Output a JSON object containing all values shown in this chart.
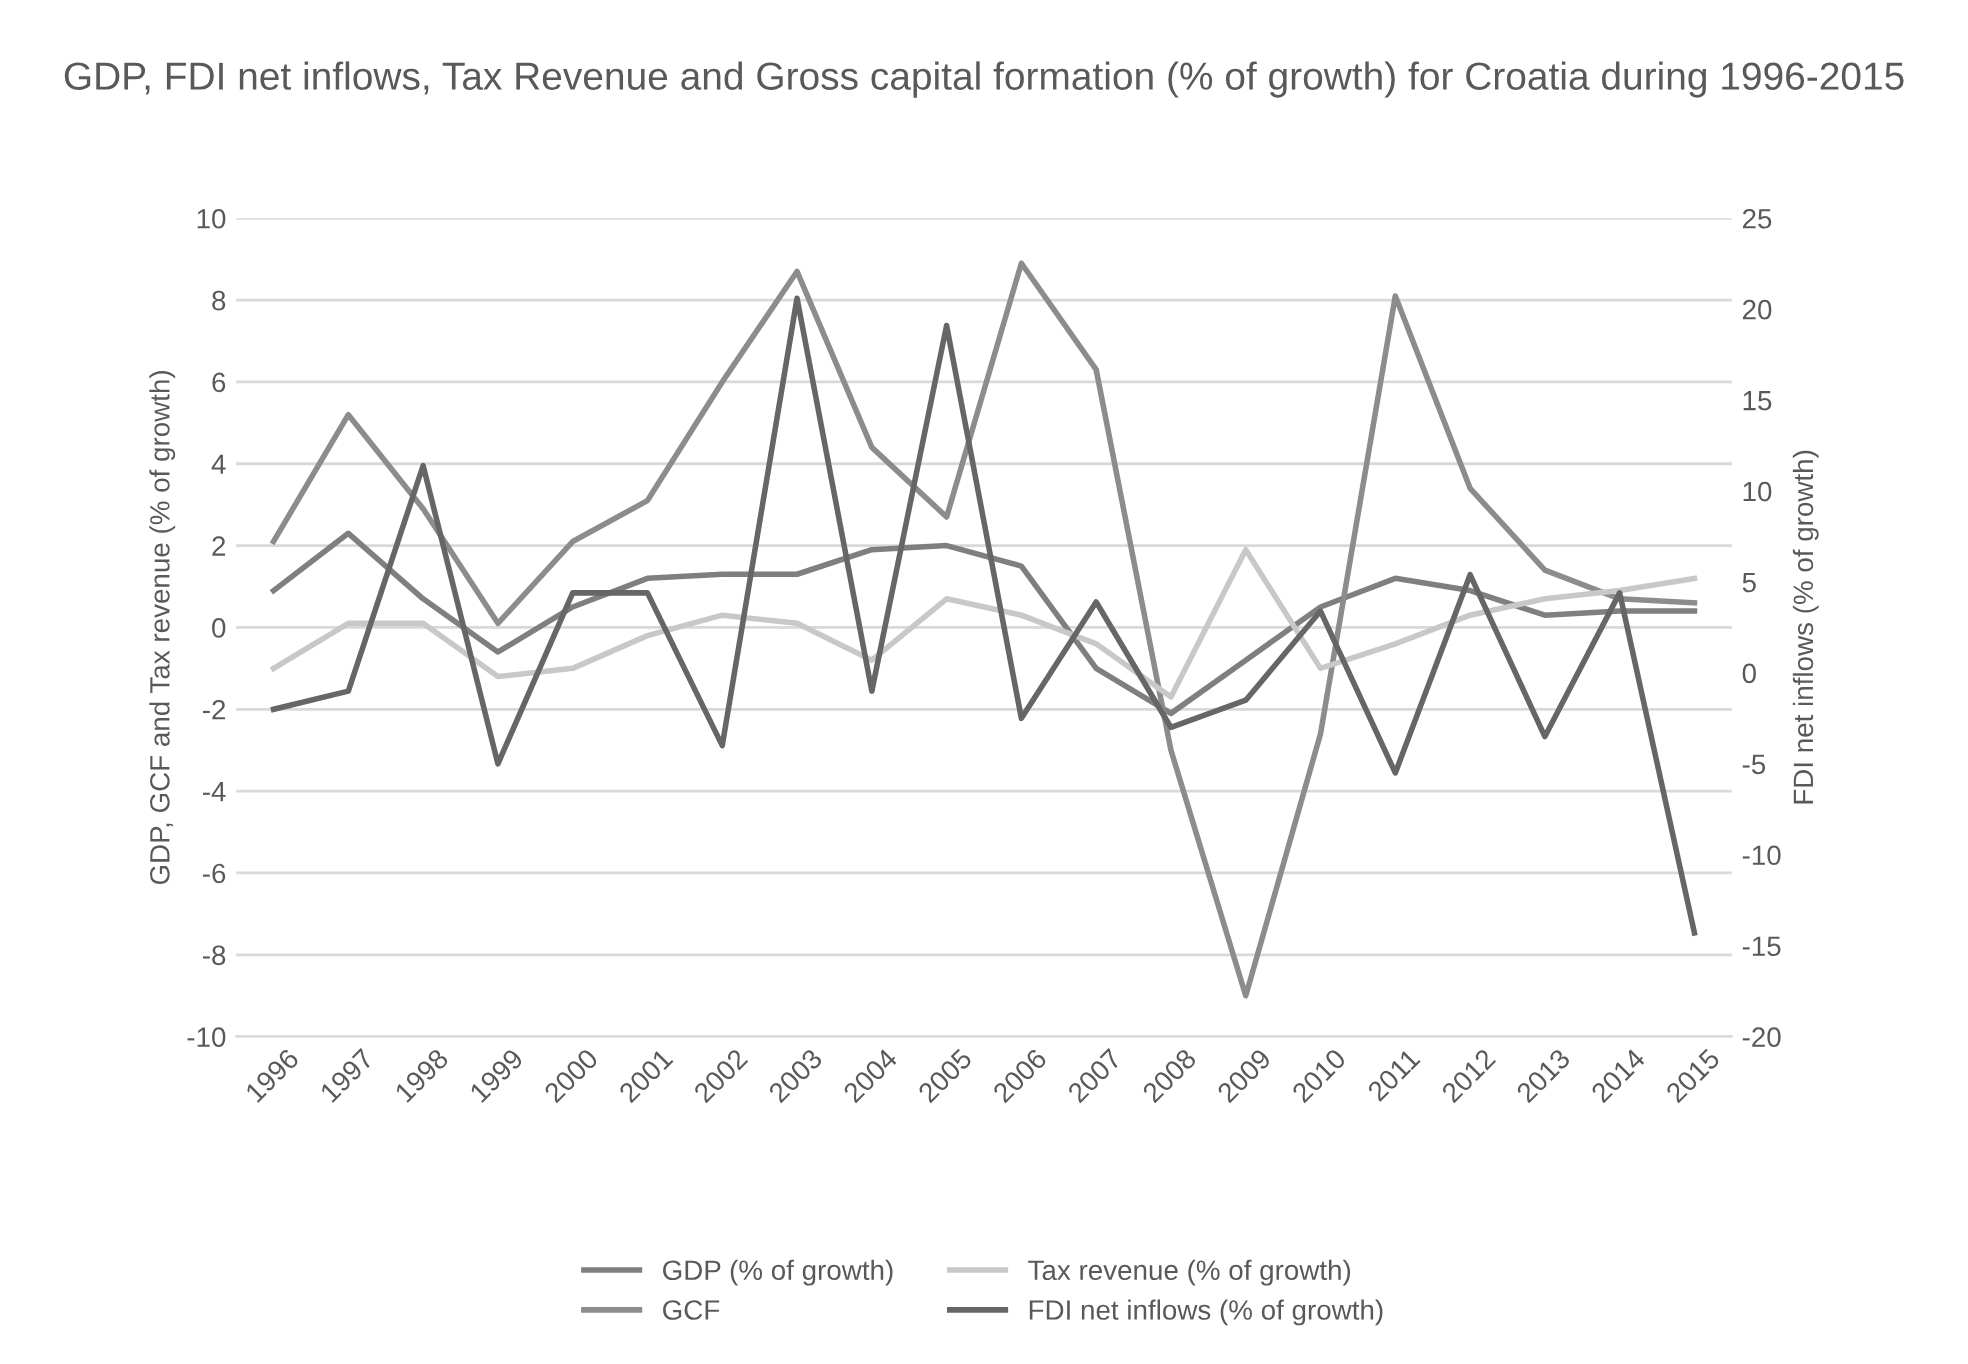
{
  "chart_data": {
    "type": "line",
    "title": "GDP, FDI net inflows, Tax Revenue and Gross capital formation (% of growth) for Croatia during 1996-2015",
    "ylabel": "GDP, GCF and Tax revenue (% of growth)",
    "y2label": "FDI net inflows (% of growth)",
    "categories": [
      "1996",
      "1997",
      "1998",
      "1999",
      "2000",
      "2001",
      "2002",
      "2003",
      "2004",
      "2005",
      "2006",
      "2007",
      "2008",
      "2009",
      "2010",
      "2011",
      "2012",
      "2013",
      "2014",
      "2015"
    ],
    "series": [
      {
        "name": "GDP (% of growth)",
        "color": "#7f7f7f",
        "values": [
          0.9,
          2.3,
          0.7,
          -0.6,
          0.5,
          1.2,
          1.3,
          1.3,
          1.9,
          2.0,
          1.5,
          -1.0,
          -2.1,
          -0.8,
          0.5,
          1.2,
          0.9,
          0.3,
          0.4,
          0.4
        ]
      },
      {
        "name": "GCF",
        "color": "#8c8c8c",
        "values": [
          2.1,
          5.2,
          2.9,
          0.1,
          2.1,
          3.1,
          6.0,
          8.7,
          4.4,
          2.7,
          8.9,
          6.3,
          -3.0,
          -9.0,
          -2.6,
          8.1,
          3.4,
          1.4,
          0.7,
          0.6
        ]
      },
      {
        "name": "Tax revenue (% of growth)",
        "color": "#c8c8c8",
        "values": [
          -1.0,
          0.1,
          0.1,
          -1.2,
          -1.0,
          -0.2,
          0.3,
          0.1,
          -0.8,
          0.7,
          0.3,
          -0.4,
          -1.7,
          1.9,
          -1.0,
          -0.4,
          0.3,
          0.7,
          0.9,
          1.2
        ]
      },
      {
        "name": "FDI net inflows (% of growth)",
        "color": "#666666",
        "axis": "y2",
        "values": [
          -2.0,
          -1.0,
          11.4,
          -5.0,
          4.4,
          4.4,
          -4.0,
          20.6,
          -1.0,
          19.1,
          -2.5,
          3.9,
          -3.0,
          -1.5,
          3.4,
          -5.5,
          5.4,
          -3.5,
          4.4,
          -14.3
        ]
      }
    ],
    "ylim": [
      -10,
      10
    ],
    "yticks": [
      -10,
      -8,
      -6,
      -4,
      -2,
      0,
      2,
      4,
      6,
      8,
      10
    ],
    "y2lim": [
      -20,
      25
    ],
    "y2ticks": [
      -20,
      -15,
      -10,
      -5,
      0,
      5,
      10,
      15,
      20,
      25
    ],
    "grid": "y",
    "legend": "bottom",
    "marker": "none",
    "line_style": "solid"
  }
}
